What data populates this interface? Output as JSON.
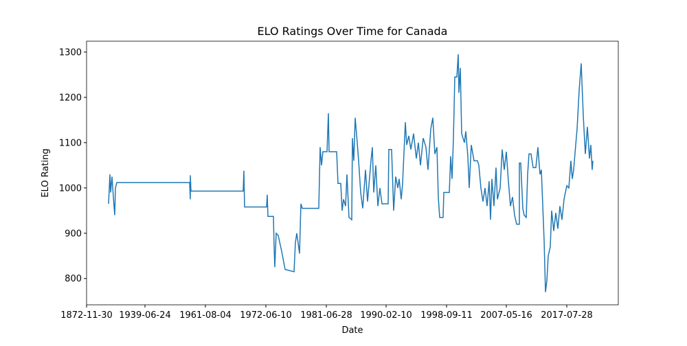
{
  "chart_data": {
    "type": "line",
    "title": "ELO Ratings Over Time for Canada",
    "x_label": "Date",
    "y_label": "ELO Rating",
    "color": "#1f77b4",
    "x": [
      32,
      34,
      35,
      37,
      39,
      41,
      42,
      44,
      150,
      151,
      151,
      152,
      228,
      229,
      230,
      262,
      263,
      264,
      272,
      273,
      274,
      276,
      279,
      284,
      289,
      302,
      304,
      306,
      310,
      312,
      314,
      338,
      340,
      342,
      344,
      350,
      352,
      353,
      364,
      366,
      370,
      372,
      374,
      377,
      379,
      382,
      386,
      387,
      389,
      391,
      394,
      396,
      399,
      402,
      406,
      409,
      414,
      416,
      418,
      421,
      424,
      427,
      430,
      439,
      440,
      444,
      447,
      450,
      453,
      455,
      458,
      460,
      464,
      466,
      469,
      472,
      476,
      480,
      483,
      486,
      490,
      494,
      497,
      501,
      504,
      507,
      510,
      512,
      514,
      519,
      520,
      528,
      530,
      532,
      534,
      536,
      539,
      541,
      542,
      544,
      546,
      550,
      552,
      555,
      557,
      560,
      564,
      569,
      571,
      574,
      577,
      580,
      583,
      586,
      588,
      590,
      593,
      596,
      598,
      602,
      605,
      608,
      611,
      614,
      617,
      620,
      623,
      626,
      630,
      630,
      632,
      635,
      637,
      640,
      642,
      644,
      647,
      650,
      654,
      657,
      660,
      662,
      666,
      668,
      670,
      672,
      675,
      677,
      680,
      683,
      686,
      689,
      692,
      695,
      699,
      702,
      705,
      707,
      709,
      712,
      714,
      717,
      720,
      723,
      726,
      729,
      732,
      734,
      736,
      737
    ],
    "series": [
      {
        "name": "Canada",
        "values": [
          965,
          1030,
          990,
          1025,
          980,
          940,
          1000,
          1012,
          1012,
          975,
          1028,
          993,
          993,
          1038,
          958,
          958,
          985,
          937,
          937,
          870,
          825,
          900,
          895,
          860,
          820,
          815,
          880,
          900,
          855,
          965,
          955,
          955,
          1090,
          1050,
          1080,
          1080,
          1165,
          1080,
          1080,
          1010,
          1010,
          950,
          975,
          960,
          1030,
          935,
          930,
          1110,
          1060,
          1155,
          1100,
          1060,
          990,
          955,
          1040,
          970,
          1060,
          1090,
          990,
          1050,
          960,
          1000,
          965,
          965,
          1085,
          1085,
          950,
          1025,
          1000,
          1020,
          975,
          1010,
          1145,
          1095,
          1115,
          1085,
          1120,
          1065,
          1100,
          1050,
          1110,
          1090,
          1040,
          1130,
          1155,
          1075,
          1090,
          980,
          935,
          935,
          990,
          990,
          1070,
          1020,
          1110,
          1245,
          1245,
          1295,
          1210,
          1265,
          1120,
          1100,
          1125,
          1070,
          1000,
          1095,
          1060,
          1060,
          1050,
          1000,
          970,
          1000,
          960,
          1015,
          930,
          1020,
          960,
          1045,
          975,
          1000,
          1085,
          1040,
          1080,
          1015,
          960,
          980,
          940,
          920,
          920,
          1055,
          1055,
          955,
          940,
          935,
          1030,
          1075,
          1075,
          1045,
          1045,
          1090,
          1030,
          1040,
          885,
          770,
          795,
          850,
          870,
          950,
          905,
          945,
          910,
          960,
          930,
          975,
          1005,
          1000,
          1060,
          1020,
          1040,
          1095,
          1130,
          1215,
          1275,
          1160,
          1075,
          1135,
          1065,
          1095,
          1040,
          1060
        ]
      }
    ],
    "xlim": [
      0,
      774
    ],
    "xticks": [
      {
        "value": 0,
        "label": "1872-11-30"
      },
      {
        "value": 85,
        "label": "1939-06-24"
      },
      {
        "value": 173,
        "label": "1961-08-04"
      },
      {
        "value": 261,
        "label": "1972-06-10"
      },
      {
        "value": 349,
        "label": "1981-06-28"
      },
      {
        "value": 436,
        "label": "1990-02-10"
      },
      {
        "value": 524,
        "label": "1998-09-11"
      },
      {
        "value": 611,
        "label": "2007-05-16"
      },
      {
        "value": 699,
        "label": "2017-07-28"
      }
    ],
    "ylim": [
      742,
      1324
    ],
    "yticks": [
      800,
      900,
      1000,
      1100,
      1200,
      1300
    ]
  }
}
